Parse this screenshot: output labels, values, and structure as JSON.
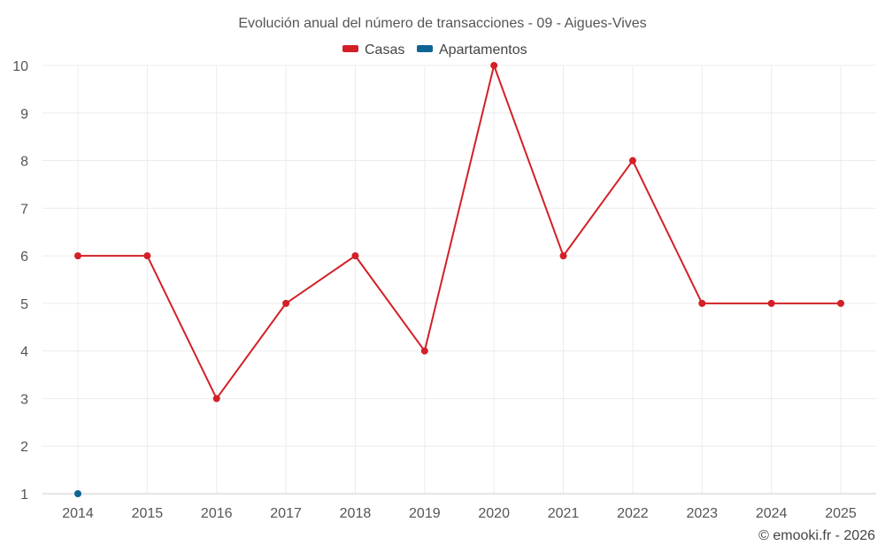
{
  "chart_data": {
    "type": "line",
    "title": "Evolución anual del número de transacciones - 09 - Aigues-Vives",
    "x": [
      "2014",
      "2015",
      "2016",
      "2017",
      "2018",
      "2019",
      "2020",
      "2021",
      "2022",
      "2023",
      "2024",
      "2025"
    ],
    "series": [
      {
        "name": "Casas",
        "color": "#d32027",
        "values": [
          6,
          6,
          3,
          5,
          6,
          4,
          10,
          6,
          8,
          5,
          5,
          5
        ]
      },
      {
        "name": "Apartamentos",
        "color": "#0f6496",
        "values": [
          1,
          null,
          null,
          null,
          null,
          null,
          null,
          null,
          null,
          null,
          null,
          null
        ]
      }
    ],
    "yticks": [
      1,
      2,
      3,
      4,
      5,
      6,
      7,
      8,
      9,
      10
    ],
    "ylim": [
      1,
      10
    ],
    "grid": true,
    "legend_position": "top-center",
    "xlabel": "",
    "ylabel": ""
  },
  "credit": "© emooki.fr - 2026"
}
